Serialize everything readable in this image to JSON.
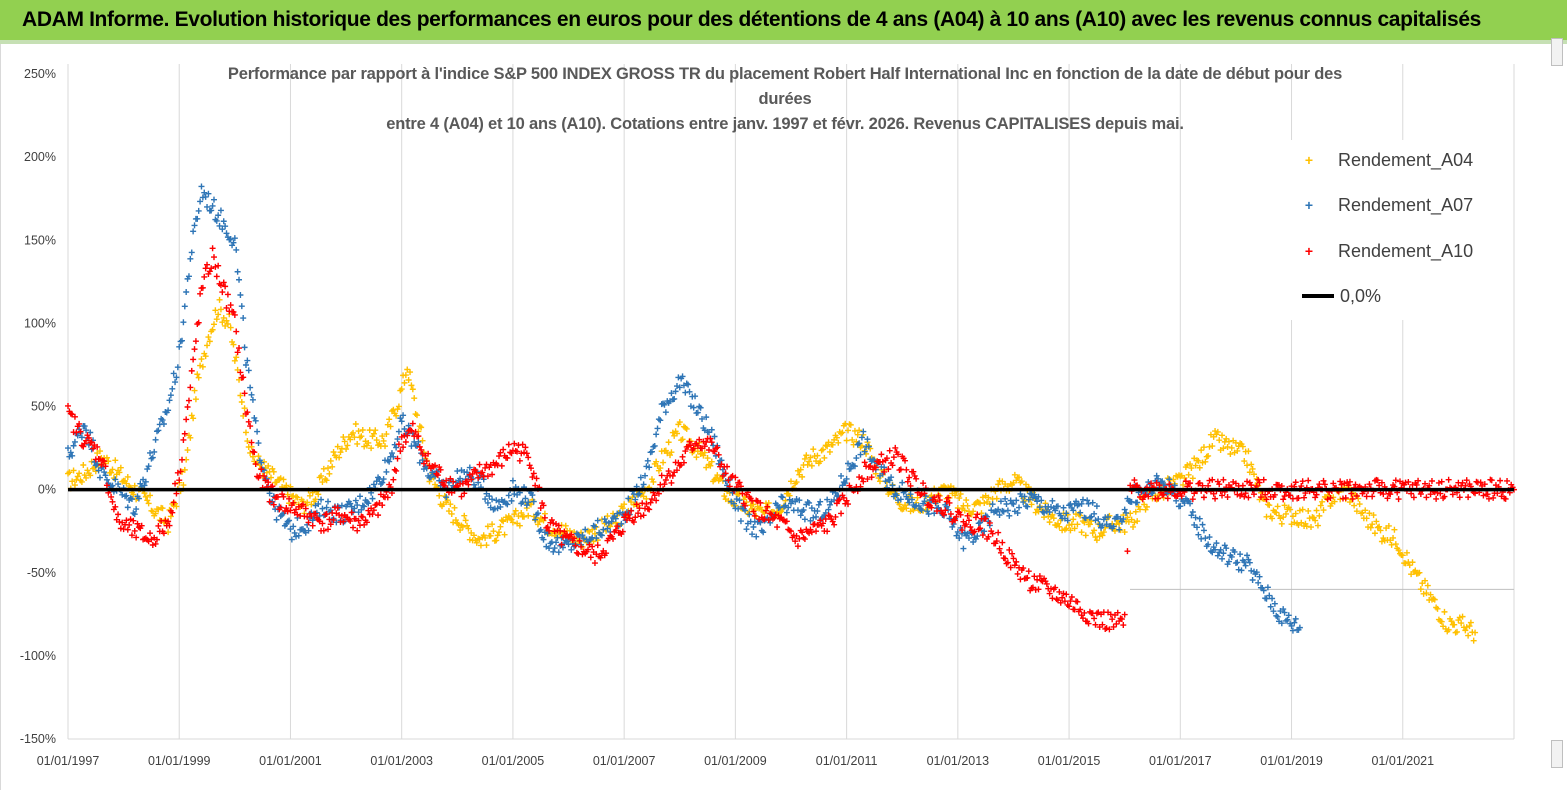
{
  "header": {
    "banner_title": "ADAM Informe. Evolution historique des performances en euros pour des détentions de 4 ans (A04) à 10 ans (A10) avec les revenus connus capitalisés"
  },
  "chart_data": {
    "type": "scatter",
    "title_lines": [
      "Performance par rapport à l'indice S&P 500 INDEX GROSS TR  du placement Robert Half International Inc en fonction de la date de début pour des",
      "durées",
      "entre 4 (A04) et 10 ans (A10).  Cotations entre janv. 1997 et févr. 2026. Revenus CAPITALISES depuis mai."
    ],
    "xlabel": "",
    "ylabel": "",
    "ylim": [
      -1.5,
      2.5
    ],
    "y_ticks": [
      2.5,
      2.0,
      1.5,
      1.0,
      0.5,
      0.0,
      -0.5,
      -1.0,
      -1.5
    ],
    "y_tick_labels": [
      "250%",
      "200%",
      "150%",
      "100%",
      "50%",
      "0%",
      "-50%",
      "-100%",
      "-150%"
    ],
    "x_range_years": [
      1997.0,
      2023.0
    ],
    "x_tick_labels": [
      "01/01/1997",
      "01/01/1999",
      "01/01/2001",
      "01/01/2003",
      "01/01/2005",
      "01/01/2007",
      "01/01/2009",
      "01/01/2011",
      "01/01/2013",
      "01/01/2015",
      "01/01/2017",
      "01/01/2019",
      "01/01/2021"
    ],
    "x_tick_years": [
      1997,
      1999,
      2001,
      2003,
      2005,
      2007,
      2009,
      2011,
      2013,
      2015,
      2017,
      2019,
      2021
    ],
    "grid": "vertical",
    "legend_position": "top-right",
    "series": [
      {
        "name": "Rendement_A04",
        "color": "#ffc000",
        "marker": "+",
        "points": [
          [
            1997.0,
            0.05
          ],
          [
            1997.3,
            0.1
          ],
          [
            1997.6,
            0.2
          ],
          [
            1997.9,
            0.1
          ],
          [
            1998.2,
            0.0
          ],
          [
            1998.5,
            -0.1
          ],
          [
            1998.8,
            -0.2
          ],
          [
            1999.1,
            0.1
          ],
          [
            1999.3,
            0.6
          ],
          [
            1999.5,
            0.9
          ],
          [
            1999.7,
            1.1
          ],
          [
            1999.9,
            1.0
          ],
          [
            2000.1,
            0.6
          ],
          [
            2000.3,
            0.2
          ],
          [
            2000.6,
            0.1
          ],
          [
            2000.9,
            0.0
          ],
          [
            2001.2,
            -0.1
          ],
          [
            2001.5,
            0.0
          ],
          [
            2001.8,
            0.2
          ],
          [
            2002.1,
            0.35
          ],
          [
            2002.4,
            0.3
          ],
          [
            2002.7,
            0.3
          ],
          [
            2003.0,
            0.6
          ],
          [
            2003.1,
            0.75
          ],
          [
            2003.3,
            0.4
          ],
          [
            2003.5,
            0.1
          ],
          [
            2003.8,
            -0.1
          ],
          [
            2004.1,
            -0.2
          ],
          [
            2004.4,
            -0.3
          ],
          [
            2004.7,
            -0.25
          ],
          [
            2005.0,
            -0.2
          ],
          [
            2005.3,
            -0.1
          ],
          [
            2005.6,
            -0.2
          ],
          [
            2005.9,
            -0.25
          ],
          [
            2006.2,
            -0.3
          ],
          [
            2006.5,
            -0.25
          ],
          [
            2006.8,
            -0.2
          ],
          [
            2007.1,
            -0.1
          ],
          [
            2007.4,
            0.0
          ],
          [
            2007.7,
            0.2
          ],
          [
            2008.0,
            0.35
          ],
          [
            2008.3,
            0.25
          ],
          [
            2008.6,
            0.1
          ],
          [
            2008.9,
            -0.05
          ],
          [
            2009.2,
            -0.1
          ],
          [
            2009.5,
            -0.15
          ],
          [
            2009.8,
            -0.1
          ],
          [
            2010.1,
            0.1
          ],
          [
            2010.4,
            0.2
          ],
          [
            2010.7,
            0.25
          ],
          [
            2011.0,
            0.35
          ],
          [
            2011.3,
            0.3
          ],
          [
            2011.6,
            0.1
          ],
          [
            2011.9,
            -0.05
          ],
          [
            2012.2,
            -0.1
          ],
          [
            2012.5,
            -0.05
          ],
          [
            2012.8,
            0.0
          ],
          [
            2013.1,
            -0.1
          ],
          [
            2013.4,
            -0.1
          ],
          [
            2013.7,
            0.0
          ],
          [
            2014.0,
            0.05
          ],
          [
            2014.3,
            -0.05
          ],
          [
            2014.6,
            -0.15
          ],
          [
            2014.9,
            -0.2
          ],
          [
            2015.2,
            -0.2
          ],
          [
            2015.5,
            -0.25
          ],
          [
            2015.8,
            -0.2
          ],
          [
            2016.1,
            -0.2
          ],
          [
            2016.4,
            -0.05
          ],
          [
            2016.7,
            0.0
          ],
          [
            2017.0,
            0.05
          ],
          [
            2017.3,
            0.15
          ],
          [
            2017.6,
            0.3
          ],
          [
            2017.9,
            0.25
          ],
          [
            2018.2,
            0.2
          ],
          [
            2018.5,
            -0.1
          ],
          [
            2018.8,
            -0.15
          ],
          [
            2019.1,
            -0.15
          ],
          [
            2019.4,
            -0.2
          ],
          [
            2019.7,
            -0.05
          ],
          [
            2020.0,
            0.0
          ],
          [
            2020.3,
            -0.15
          ],
          [
            2020.6,
            -0.25
          ],
          [
            2020.9,
            -0.3
          ],
          [
            2021.2,
            -0.5
          ],
          [
            2021.5,
            -0.65
          ],
          [
            2021.8,
            -0.8
          ],
          [
            2022.1,
            -0.82
          ],
          [
            2022.3,
            -0.86
          ]
        ]
      },
      {
        "name": "Rendement_A07",
        "color": "#2e75b6",
        "marker": "+",
        "points": [
          [
            1997.0,
            0.2
          ],
          [
            1997.3,
            0.4
          ],
          [
            1997.6,
            0.1
          ],
          [
            1997.9,
            0.0
          ],
          [
            1998.2,
            -0.1
          ],
          [
            1998.5,
            0.2
          ],
          [
            1998.8,
            0.5
          ],
          [
            1999.0,
            0.8
          ],
          [
            1999.2,
            1.4
          ],
          [
            1999.4,
            1.8
          ],
          [
            1999.6,
            1.7
          ],
          [
            1999.8,
            1.6
          ],
          [
            2000.0,
            1.5
          ],
          [
            2000.2,
            0.8
          ],
          [
            2000.4,
            0.3
          ],
          [
            2000.7,
            -0.1
          ],
          [
            2001.0,
            -0.25
          ],
          [
            2001.3,
            -0.2
          ],
          [
            2001.6,
            -0.1
          ],
          [
            2001.9,
            -0.15
          ],
          [
            2002.2,
            -0.1
          ],
          [
            2002.5,
            0.0
          ],
          [
            2002.8,
            0.2
          ],
          [
            2003.0,
            0.4
          ],
          [
            2003.2,
            0.3
          ],
          [
            2003.5,
            0.1
          ],
          [
            2003.8,
            0.0
          ],
          [
            2004.1,
            0.1
          ],
          [
            2004.4,
            0.05
          ],
          [
            2004.7,
            -0.1
          ],
          [
            2005.0,
            0.0
          ],
          [
            2005.3,
            -0.05
          ],
          [
            2005.6,
            -0.3
          ],
          [
            2005.9,
            -0.35
          ],
          [
            2006.2,
            -0.3
          ],
          [
            2006.5,
            -0.25
          ],
          [
            2006.8,
            -0.2
          ],
          [
            2007.1,
            -0.1
          ],
          [
            2007.4,
            0.1
          ],
          [
            2007.7,
            0.5
          ],
          [
            2008.0,
            0.65
          ],
          [
            2008.3,
            0.5
          ],
          [
            2008.6,
            0.3
          ],
          [
            2008.9,
            0.0
          ],
          [
            2009.2,
            -0.2
          ],
          [
            2009.5,
            -0.25
          ],
          [
            2009.8,
            -0.1
          ],
          [
            2010.1,
            -0.1
          ],
          [
            2010.4,
            -0.15
          ],
          [
            2010.7,
            -0.1
          ],
          [
            2011.0,
            0.1
          ],
          [
            2011.3,
            0.3
          ],
          [
            2011.6,
            0.1
          ],
          [
            2011.9,
            0.0
          ],
          [
            2012.2,
            -0.05
          ],
          [
            2012.5,
            -0.1
          ],
          [
            2012.8,
            -0.15
          ],
          [
            2013.1,
            -0.3
          ],
          [
            2013.4,
            -0.25
          ],
          [
            2013.7,
            -0.1
          ],
          [
            2014.0,
            -0.1
          ],
          [
            2014.3,
            -0.05
          ],
          [
            2014.6,
            -0.1
          ],
          [
            2014.9,
            -0.15
          ],
          [
            2015.2,
            -0.1
          ],
          [
            2015.5,
            -0.15
          ],
          [
            2015.8,
            -0.25
          ],
          [
            2016.1,
            -0.05
          ],
          [
            2016.4,
            0.0
          ],
          [
            2016.7,
            0.05
          ],
          [
            2017.0,
            -0.05
          ],
          [
            2017.3,
            -0.2
          ],
          [
            2017.6,
            -0.35
          ],
          [
            2017.9,
            -0.4
          ],
          [
            2018.2,
            -0.45
          ],
          [
            2018.5,
            -0.6
          ],
          [
            2018.8,
            -0.75
          ],
          [
            2019.0,
            -0.8
          ],
          [
            2019.15,
            -0.83
          ]
        ]
      },
      {
        "name": "Rendement_A10",
        "color": "#ff0000",
        "marker": "+",
        "points": [
          [
            1997.0,
            0.45
          ],
          [
            1997.3,
            0.3
          ],
          [
            1997.6,
            0.2
          ],
          [
            1997.9,
            -0.2
          ],
          [
            1998.2,
            -0.25
          ],
          [
            1998.5,
            -0.3
          ],
          [
            1998.8,
            -0.2
          ],
          [
            1999.0,
            0.1
          ],
          [
            1999.2,
            0.6
          ],
          [
            1999.4,
            1.2
          ],
          [
            1999.6,
            1.4
          ],
          [
            1999.8,
            1.2
          ],
          [
            2000.0,
            1.0
          ],
          [
            2000.2,
            0.5
          ],
          [
            2000.4,
            0.1
          ],
          [
            2000.7,
            -0.05
          ],
          [
            2001.0,
            -0.1
          ],
          [
            2001.3,
            -0.15
          ],
          [
            2001.6,
            -0.2
          ],
          [
            2001.9,
            -0.15
          ],
          [
            2002.2,
            -0.2
          ],
          [
            2002.5,
            -0.15
          ],
          [
            2002.8,
            0.0
          ],
          [
            2003.0,
            0.3
          ],
          [
            2003.2,
            0.35
          ],
          [
            2003.5,
            0.15
          ],
          [
            2003.8,
            0.05
          ],
          [
            2004.1,
            0.0
          ],
          [
            2004.4,
            0.1
          ],
          [
            2004.7,
            0.15
          ],
          [
            2005.0,
            0.25
          ],
          [
            2005.3,
            0.2
          ],
          [
            2005.6,
            -0.2
          ],
          [
            2005.9,
            -0.3
          ],
          [
            2006.2,
            -0.35
          ],
          [
            2006.5,
            -0.4
          ],
          [
            2006.8,
            -0.3
          ],
          [
            2007.1,
            -0.15
          ],
          [
            2007.4,
            -0.1
          ],
          [
            2007.7,
            0.05
          ],
          [
            2008.0,
            0.15
          ],
          [
            2008.3,
            0.3
          ],
          [
            2008.6,
            0.25
          ],
          [
            2008.9,
            0.05
          ],
          [
            2009.2,
            -0.05
          ],
          [
            2009.5,
            -0.15
          ],
          [
            2009.8,
            -0.2
          ],
          [
            2010.1,
            -0.3
          ],
          [
            2010.4,
            -0.25
          ],
          [
            2010.7,
            -0.2
          ],
          [
            2011.0,
            -0.05
          ],
          [
            2011.3,
            0.1
          ],
          [
            2011.6,
            0.15
          ],
          [
            2011.9,
            0.2
          ],
          [
            2012.2,
            0.05
          ],
          [
            2012.5,
            -0.05
          ],
          [
            2012.8,
            -0.1
          ],
          [
            2013.1,
            -0.2
          ],
          [
            2013.4,
            -0.2
          ],
          [
            2013.7,
            -0.3
          ],
          [
            2014.0,
            -0.45
          ],
          [
            2014.3,
            -0.55
          ],
          [
            2014.6,
            -0.6
          ],
          [
            2014.9,
            -0.65
          ],
          [
            2015.2,
            -0.72
          ],
          [
            2015.5,
            -0.78
          ],
          [
            2015.8,
            -0.8
          ],
          [
            2016.0,
            -0.8
          ],
          [
            2016.1,
            0.0
          ],
          [
            2023.0,
            0.0
          ]
        ]
      },
      {
        "name": "0,0%",
        "color": "#000000",
        "marker": "line",
        "points": [
          [
            1997.0,
            0.0
          ],
          [
            2023.0,
            0.0
          ]
        ]
      }
    ]
  }
}
